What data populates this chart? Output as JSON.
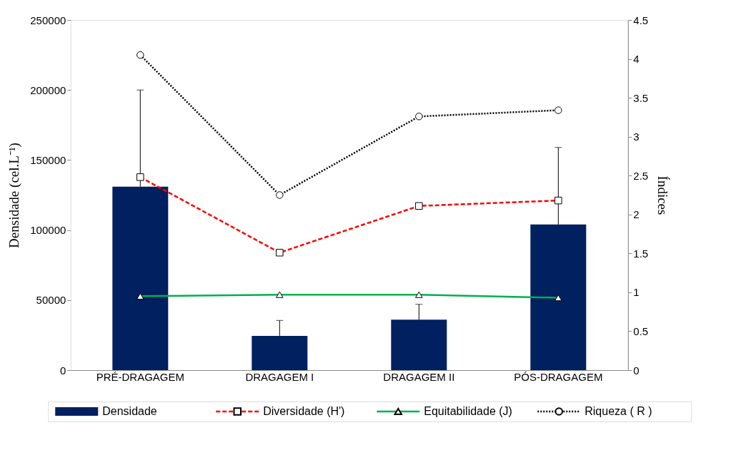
{
  "chart_data": {
    "type": "bar",
    "categories": [
      "PRÉ-DRAGAGEM",
      "DRAGAGEM I",
      "DRAGAGEM II",
      "PÓS-DRAGAGEM"
    ],
    "ylabel": "Densidade (cel.L⁻¹)",
    "y2label": "Índices",
    "ylim": [
      0,
      250000
    ],
    "yticks": [
      0,
      50000,
      100000,
      150000,
      200000,
      250000
    ],
    "y2lim": [
      0,
      4.5
    ],
    "y2ticks": [
      0,
      0.5,
      1,
      1.5,
      2,
      2.5,
      3,
      3.5,
      4,
      4.5
    ],
    "grid": false,
    "legend": "bottom",
    "series": [
      {
        "name": "Densidade",
        "color": "#002060",
        "values": [
          131000,
          24500,
          36000,
          104000
        ],
        "errors": [
          [
            131000,
            200000
          ],
          [
            24500,
            35500
          ],
          [
            36000,
            47000
          ],
          [
            104000,
            159000
          ]
        ]
      },
      {
        "name": "Diversidade (H')",
        "type": "line",
        "axis": "y2",
        "color": "#ff0000",
        "line_style": "dashed",
        "marker": "square",
        "values": [
          2.48,
          1.51,
          2.11,
          2.18
        ]
      },
      {
        "name": "Equitabilidade (J)",
        "type": "line",
        "axis": "y2",
        "color": "#00b050",
        "line_style": "solid",
        "marker": "triangle",
        "values": [
          0.95,
          0.97,
          0.97,
          0.93
        ]
      },
      {
        "name": "Riqueza ( R )",
        "type": "line",
        "axis": "y2",
        "color": "#000000",
        "line_style": "dotted",
        "marker": "circle",
        "values": [
          4.05,
          2.25,
          3.26,
          3.34
        ]
      }
    ]
  }
}
